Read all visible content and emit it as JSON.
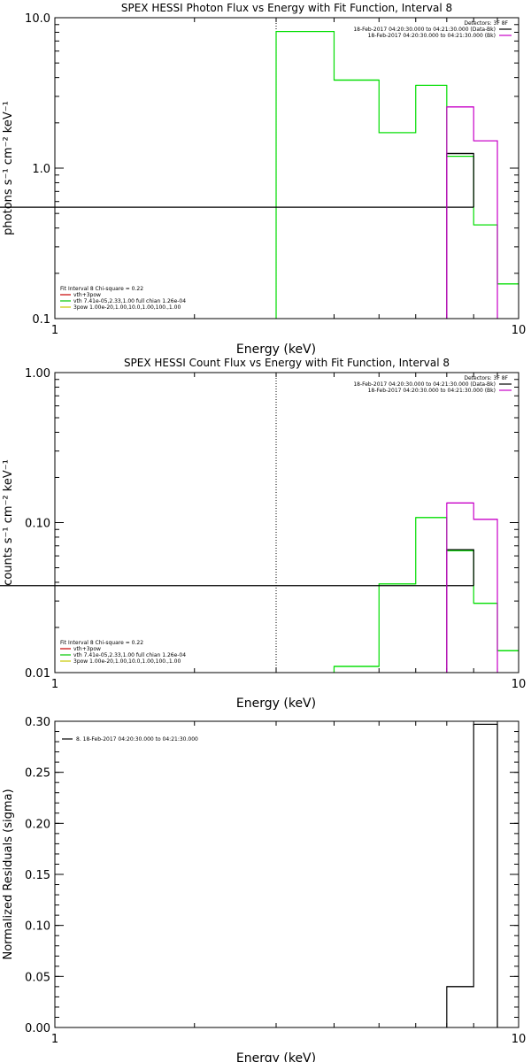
{
  "chart_data": [
    {
      "type": "line",
      "title": "SPEX HESSI Photon Flux vs Energy with Fit Function, Interval 8",
      "xlabel": "Energy (keV)",
      "ylabel": "photons s⁻¹ cm⁻² keV⁻¹",
      "x_scale": "log",
      "y_scale": "log",
      "xlim": [
        1,
        10
      ],
      "ylim": [
        0.1,
        10
      ],
      "x_ticks": [
        {
          "v": 1,
          "label": "1"
        },
        {
          "v": 10,
          "label": "10"
        }
      ],
      "y_ticks": [
        {
          "v": 0.1,
          "label": "0.1"
        },
        {
          "v": 1,
          "label": "1.0"
        },
        {
          "v": 10,
          "label": "10.0"
        }
      ],
      "vline_x": 3.0,
      "legend_top": {
        "header": "Detectors: 3F 8F",
        "entries": [
          {
            "text": "18-Feb-2017 04:20:30.000 to 04:21:30.000 (Data-Bk)",
            "color": "#000000"
          },
          {
            "text": "18-Feb-2017 04:20:30.000 to 04:21:30.000 (Bk)",
            "color": "#c800c8"
          }
        ]
      },
      "legend_bottom": {
        "header": "Fit Interval 8   Chi-square = 0.22",
        "entries": [
          {
            "text": "vth+3pow",
            "color": "#c80000"
          },
          {
            "text": "vth 7.41e-05,2.33,1.00  full chian 1.26e-04",
            "color": "#00c800"
          },
          {
            "text": "3pow 1.00e-20,1.00,10.0,1.00,100.,1.00",
            "color": "#c8c800"
          }
        ]
      },
      "series": [
        {
          "color": "#00dd00",
          "edges": [
            3.0,
            4.0,
            5.0,
            6.0,
            7.0,
            8.0,
            9.0,
            10.0
          ],
          "values": [
            8.1,
            3.85,
            1.72,
            3.55,
            1.2,
            0.42,
            0.17
          ]
        },
        {
          "color": "#000000",
          "edges": [
            7.0,
            8.0
          ],
          "values": [
            1.25,
            0.55
          ]
        },
        {
          "color": "#c800c8",
          "edges": [
            7.0,
            8.0,
            9.0
          ],
          "values": [
            2.55,
            1.52
          ]
        }
      ]
    },
    {
      "type": "line",
      "title": "SPEX HESSI Count Flux vs Energy with Fit Function, Interval 8",
      "xlabel": "Energy (keV)",
      "ylabel": "counts s⁻¹ cm⁻² keV⁻¹",
      "x_scale": "log",
      "y_scale": "log",
      "xlim": [
        1,
        10
      ],
      "ylim": [
        0.01,
        1
      ],
      "x_ticks": [
        {
          "v": 1,
          "label": "1"
        },
        {
          "v": 10,
          "label": "10"
        }
      ],
      "y_ticks": [
        {
          "v": 0.01,
          "label": "0.01"
        },
        {
          "v": 0.1,
          "label": "0.10"
        },
        {
          "v": 1,
          "label": "1.00"
        }
      ],
      "vline_x": 3.0,
      "legend_top": {
        "header": "Detectors: 3F 8F",
        "entries": [
          {
            "text": "18-Feb-2017 04:20:30.000 to 04:21:30.000 (Data-Bk)",
            "color": "#000000"
          },
          {
            "text": "18-Feb-2017 04:20:30.000 to 04:21:30.000 (Bk)",
            "color": "#c800c8"
          }
        ]
      },
      "legend_bottom": {
        "header": "Fit Interval 8   Chi-square = 0.22",
        "entries": [
          {
            "text": "vth+3pow",
            "color": "#c80000"
          },
          {
            "text": "vth 7.41e-05,2.33,1.00  full chian 1.26e-04",
            "color": "#00c800"
          },
          {
            "text": "3pow 1.00e-20,1.00,10.0,1.00,100.,1.00",
            "color": "#c8c800"
          }
        ]
      },
      "series": [
        {
          "color": "#00dd00",
          "edges": [
            4.0,
            5.0,
            6.0,
            7.0,
            8.0,
            9.0,
            10.0
          ],
          "values": [
            0.011,
            0.039,
            0.108,
            0.065,
            0.029,
            0.014
          ]
        },
        {
          "color": "#000000",
          "edges": [
            7.0,
            8.0
          ],
          "values": [
            0.066,
            0.038
          ]
        },
        {
          "color": "#c800c8",
          "edges": [
            7.0,
            8.0,
            9.0
          ],
          "values": [
            0.135,
            0.105
          ]
        }
      ]
    },
    {
      "type": "bar",
      "title": "",
      "xlabel": "Energy (keV)",
      "ylabel": "Normalized Residuals (sigma)",
      "x_scale": "log",
      "y_scale": "linear",
      "xlim": [
        1,
        10
      ],
      "ylim": [
        0,
        0.3
      ],
      "x_ticks": [
        {
          "v": 1,
          "label": "1"
        },
        {
          "v": 10,
          "label": "10"
        }
      ],
      "y_ticks": [
        {
          "v": 0.0,
          "label": "0.00"
        },
        {
          "v": 0.05,
          "label": "0.05"
        },
        {
          "v": 0.1,
          "label": "0.10"
        },
        {
          "v": 0.15,
          "label": "0.15"
        },
        {
          "v": 0.2,
          "label": "0.20"
        },
        {
          "v": 0.25,
          "label": "0.25"
        },
        {
          "v": 0.3,
          "label": "0.30"
        }
      ],
      "legend_top": {
        "header": "",
        "entries": [
          {
            "text": "8. 18-Feb-2017 04:20:30.000 to 04:21:30.000",
            "color": "#000000"
          }
        ]
      },
      "series": [
        {
          "color": "#000000",
          "edges": [
            7.0,
            8.0,
            9.0
          ],
          "values": [
            0.04,
            0.297
          ]
        }
      ]
    }
  ]
}
